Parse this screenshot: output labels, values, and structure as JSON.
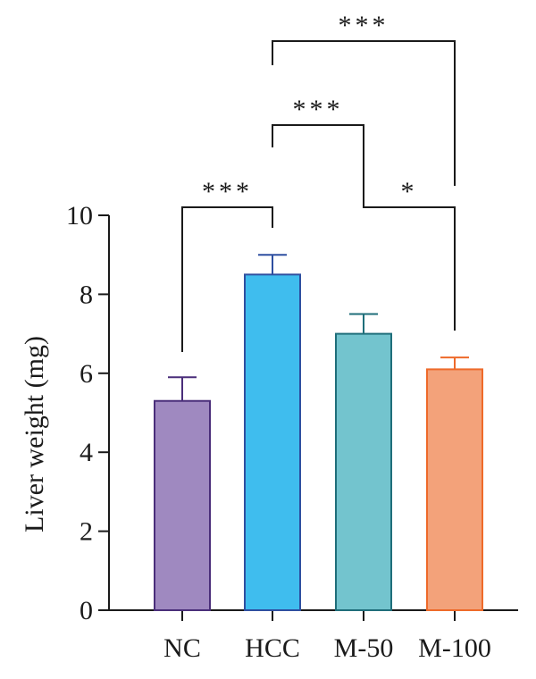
{
  "chart_data": {
    "type": "bar",
    "title": "",
    "xlabel": "",
    "ylabel": "Liver weight (mg)",
    "ylim": [
      0,
      10
    ],
    "yticks": [
      0,
      2,
      4,
      6,
      8,
      10
    ],
    "categories": [
      "NC",
      "HCC",
      "M-50",
      "M-100"
    ],
    "values": [
      5.3,
      8.5,
      7.0,
      6.1
    ],
    "errors": [
      0.6,
      0.5,
      0.5,
      0.3
    ],
    "colors": [
      "#9f89c0",
      "#3fbdee",
      "#73c4ce",
      "#f3a27a"
    ],
    "edge_colors": [
      "#4a2e7a",
      "#2e4fa0",
      "#1f6e7a",
      "#ee6a2a"
    ],
    "grid": false,
    "significance": [
      {
        "from": "NC",
        "to": "HCC",
        "label": "***"
      },
      {
        "from": "HCC",
        "to": "M-50",
        "label": "***"
      },
      {
        "from": "HCC",
        "to": "M-100",
        "label": "***"
      },
      {
        "from": "M-50",
        "to": "M-100",
        "label": "*"
      }
    ]
  }
}
